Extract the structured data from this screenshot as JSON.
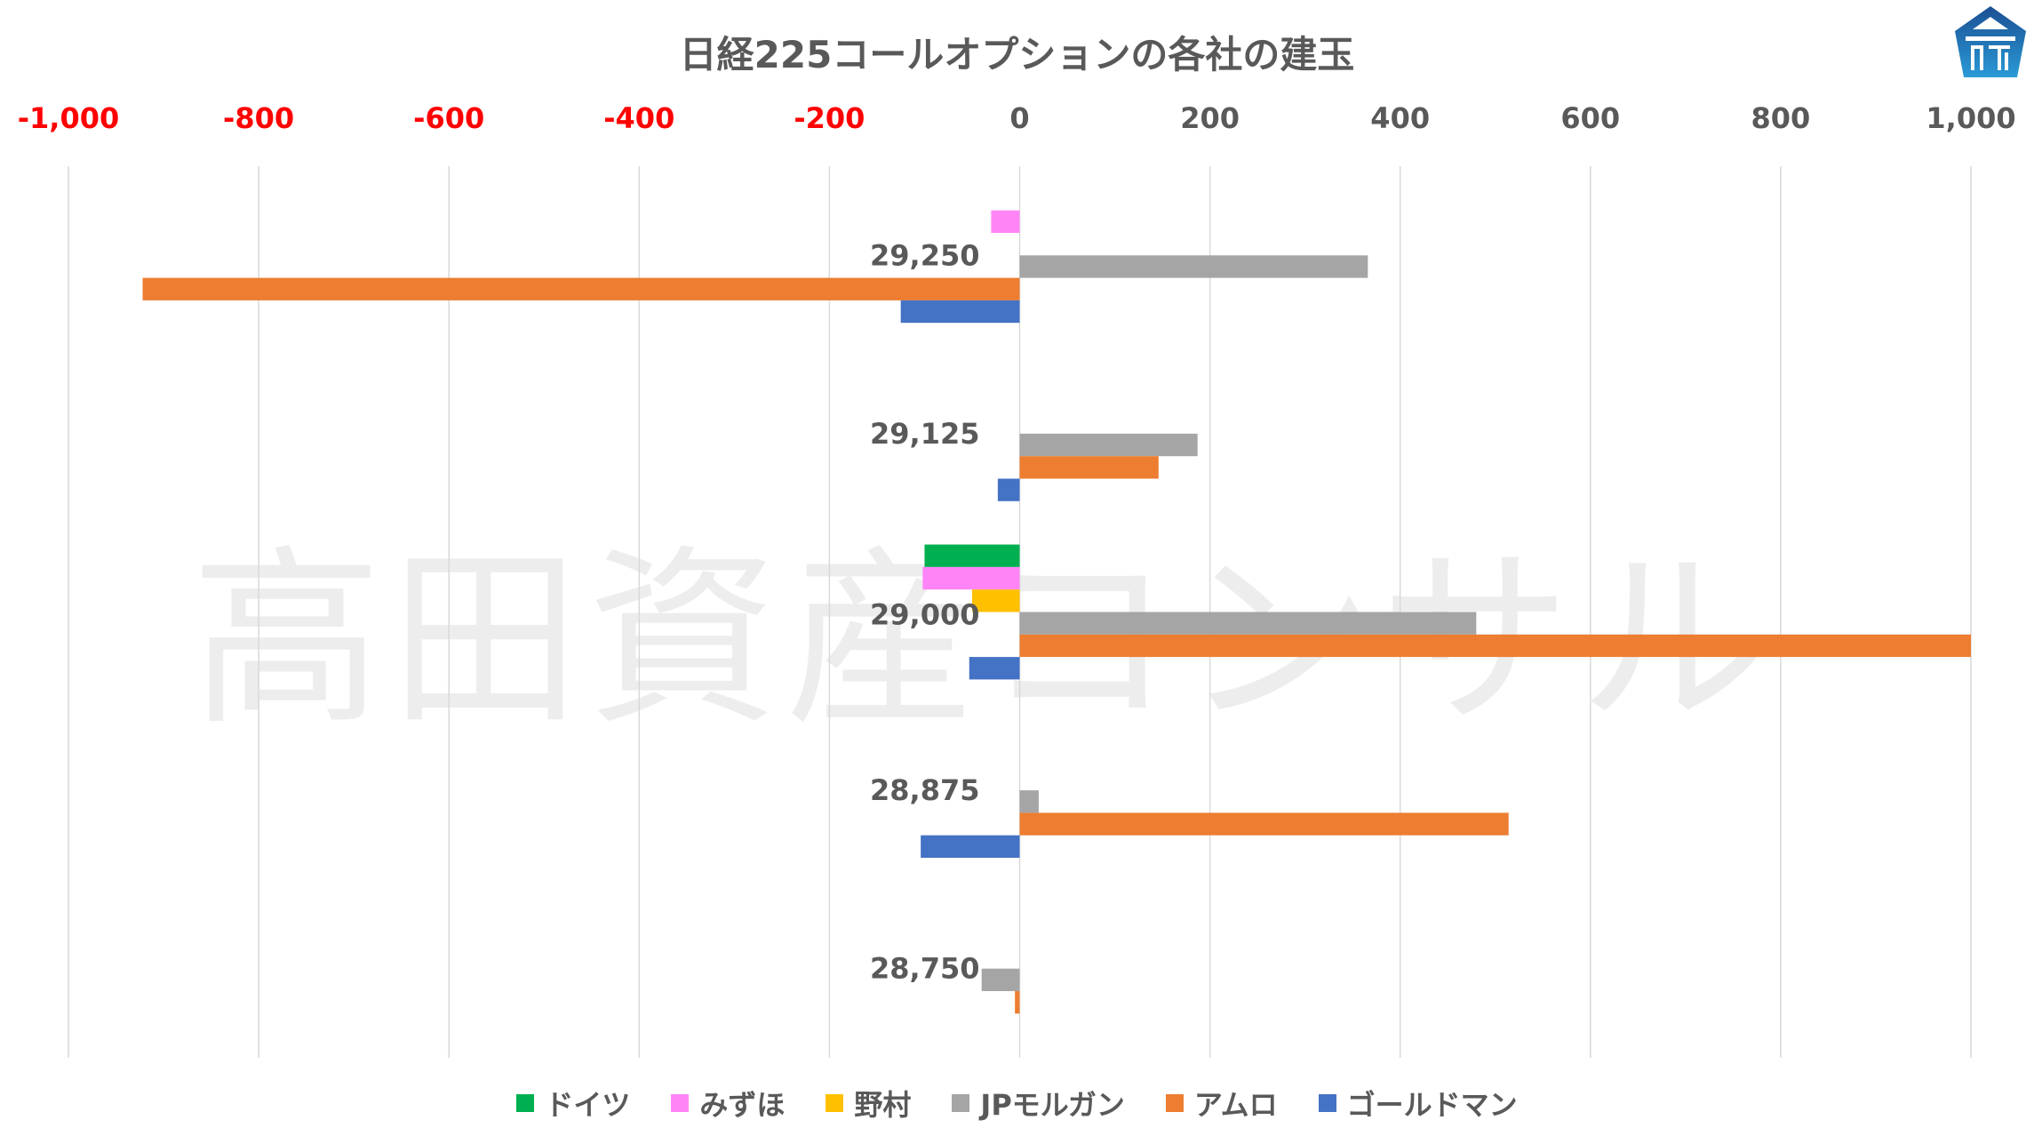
{
  "chart_data": {
    "type": "bar",
    "orientation": "horizontal",
    "title": "日経225コールオプションの各社の建玉",
    "categories": [
      "29,250",
      "29,125",
      "29,000",
      "28,875",
      "28,750"
    ],
    "xlim": [
      -1000,
      1000
    ],
    "xticks": [
      -1000,
      -800,
      -600,
      -400,
      -200,
      0,
      200,
      400,
      600,
      800,
      1000
    ],
    "xtick_labels": [
      "-1,000",
      "-800",
      "-600",
      "-400",
      "-200",
      "0",
      "200",
      "400",
      "600",
      "800",
      "1,000"
    ],
    "negative_tick_color": "#FF0000",
    "positive_tick_color": "#595959",
    "grid": true,
    "legend_position": "bottom",
    "series": [
      {
        "name": "ドイツ",
        "color": "#00B050",
        "values": [
          0,
          0,
          -100,
          0,
          0
        ]
      },
      {
        "name": "みずほ",
        "color": "#FF85F7",
        "values": [
          -30,
          0,
          -102,
          0,
          0
        ]
      },
      {
        "name": "野村",
        "color": "#FFC000",
        "values": [
          0,
          0,
          -50,
          0,
          0
        ]
      },
      {
        "name": "JPモルガン",
        "color": "#A5A5A5",
        "values": [
          366,
          187,
          480,
          20,
          -40
        ]
      },
      {
        "name": "アムロ",
        "color": "#ED7D31",
        "values": [
          -922,
          146,
          1000,
          514,
          -5
        ]
      },
      {
        "name": "ゴールドマン",
        "color": "#4472C4",
        "values": [
          -125,
          -23,
          -53,
          -104,
          0
        ]
      }
    ]
  },
  "watermark": "高田資産コンサル"
}
